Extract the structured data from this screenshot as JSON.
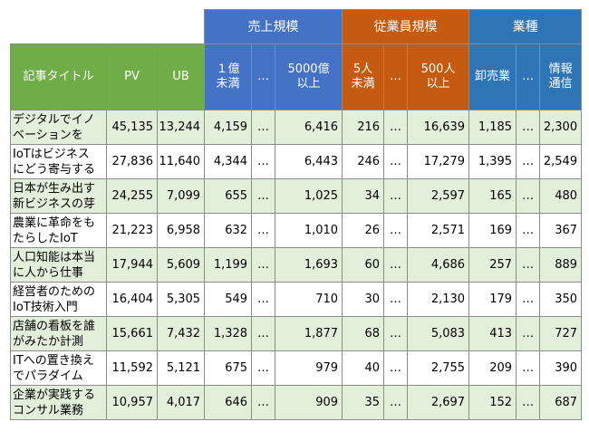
{
  "groups": {
    "sales": "売上規模",
    "employees": "従業員規模",
    "industry": "業種"
  },
  "columns": {
    "title": "記事タイトル",
    "pv": "PV",
    "ub": "UB",
    "sales_lt1": "１億\n未満",
    "dots": "…",
    "sales_ge5000": "5000億\n以上",
    "emp_lt5": "5人\n未満",
    "emp_ge500": "500人\n以上",
    "wholesale": "卸売業",
    "infocom": "情報\n通信"
  },
  "rows": [
    {
      "title": "デジタルでイノ\nベーションを",
      "pv": "45,135",
      "ub": "13,244",
      "s1": "4,159",
      "d1": "…",
      "s2": "6,416",
      "e1": "216",
      "d2": "…",
      "e2": "16,639",
      "i1": "1,185",
      "d3": "…",
      "i2": "2,300"
    },
    {
      "title": "IoTはビジネス\nにどう寄与する",
      "pv": "27,836",
      "ub": "11,640",
      "s1": "4,344",
      "d1": "…",
      "s2": "6,443",
      "e1": "246",
      "d2": "…",
      "e2": "17,279",
      "i1": "1,395",
      "d3": "…",
      "i2": "2,549"
    },
    {
      "title": "日本が生み出す\n新ビジネスの芽",
      "pv": "24,255",
      "ub": "7,099",
      "s1": "655",
      "d1": "…",
      "s2": "1,025",
      "e1": "34",
      "d2": "…",
      "e2": "2,597",
      "i1": "165",
      "d3": "…",
      "i2": "480"
    },
    {
      "title": "農業に革命をも\nたらしたIoT",
      "pv": "21,223",
      "ub": "6,958",
      "s1": "632",
      "d1": "…",
      "s2": "1,010",
      "e1": "26",
      "d2": "…",
      "e2": "2,571",
      "i1": "169",
      "d3": "…",
      "i2": "367"
    },
    {
      "title": "人口知能は本当\nに人から仕事",
      "pv": "17,944",
      "ub": "5,609",
      "s1": "1,199",
      "d1": "…",
      "s2": "1,693",
      "e1": "60",
      "d2": "…",
      "e2": "4,686",
      "i1": "257",
      "d3": "…",
      "i2": "889"
    },
    {
      "title": "経営者のための\nIoT技術入門",
      "pv": "16,404",
      "ub": "5,305",
      "s1": "549",
      "d1": "…",
      "s2": "710",
      "e1": "30",
      "d2": "…",
      "e2": "2,130",
      "i1": "179",
      "d3": "…",
      "i2": "350"
    },
    {
      "title": "店舗の看板を誰\nがみたか計測",
      "pv": "15,661",
      "ub": "7,432",
      "s1": "1,328",
      "d1": "…",
      "s2": "1,877",
      "e1": "68",
      "d2": "…",
      "e2": "5,083",
      "i1": "413",
      "d3": "…",
      "i2": "727"
    },
    {
      "title": "ITへの置き換え\nでパラダイム",
      "pv": "11,592",
      "ub": "5,121",
      "s1": "675",
      "d1": "…",
      "s2": "979",
      "e1": "40",
      "d2": "…",
      "e2": "2,755",
      "i1": "209",
      "d3": "…",
      "i2": "390"
    },
    {
      "title": "企業が実践する\nコンサル業務",
      "pv": "10,957",
      "ub": "4,017",
      "s1": "646",
      "d1": "…",
      "s2": "909",
      "e1": "35",
      "d2": "…",
      "e2": "2,697",
      "i1": "152",
      "d3": "…",
      "i2": "687"
    }
  ]
}
